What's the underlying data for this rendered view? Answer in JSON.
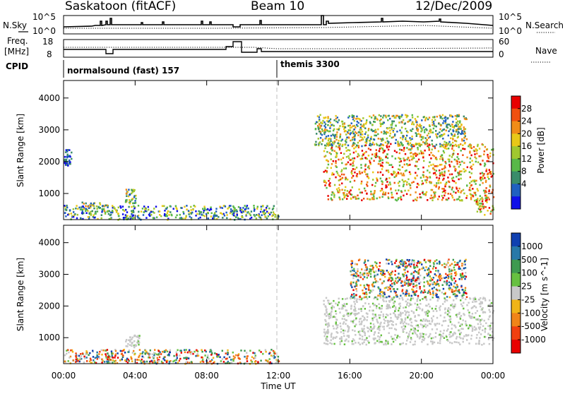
{
  "header": {
    "station": "Saskatoon (fitACF)",
    "beam": "Beam 10",
    "date": "12/Dec/2009"
  },
  "noise_panel": {
    "left_label": "N.Sky",
    "right_label": "N.Search",
    "left_ticks": [
      "10^5",
      "10^0"
    ],
    "right_ticks": [
      "10^5",
      "10^0"
    ]
  },
  "freq_panel": {
    "left_label_line1": "Freq.",
    "left_label_line2": "[MHz]",
    "right_label": "Nave",
    "left_ticks": [
      "18",
      "8"
    ],
    "right_ticks": [
      "60",
      "0"
    ]
  },
  "cpid_panel": {
    "label": "CPID",
    "segments": [
      "normalsound (fast) 157",
      "themis 3300"
    ]
  },
  "x_axis": {
    "label": "Time UT",
    "ticks": [
      "00:00",
      "04:00",
      "08:00",
      "12:00",
      "16:00",
      "20:00",
      "00:00"
    ]
  },
  "chart_data": [
    {
      "type": "heatmap",
      "title": "",
      "xlabel": "Time UT",
      "ylabel": "Slant Range [km]",
      "y_ticks": [
        "1000",
        "2000",
        "3000",
        "4000"
      ],
      "ylim": [
        180,
        4550
      ],
      "xlim_hours": [
        0,
        24
      ],
      "colorbar": {
        "label": "Power [dB]",
        "ticks": [
          "4",
          "8",
          "12",
          "16",
          "20",
          "24",
          "28"
        ],
        "colors": [
          "#1010e8",
          "#2060c0",
          "#3a8c6a",
          "#58b848",
          "#a0c830",
          "#e8c818",
          "#f08c18",
          "#f05010",
          "#e80000"
        ]
      },
      "features": [
        {
          "t0": 0.0,
          "t1": 12.0,
          "r0": 200,
          "r1": 650,
          "level": "low-mid",
          "note": "near-range ground scatter band"
        },
        {
          "t0": 0.0,
          "t1": 0.4,
          "r0": 1900,
          "r1": 2400,
          "level": "low"
        },
        {
          "t0": 1.0,
          "t1": 2.5,
          "r0": 450,
          "r1": 750,
          "level": "mid"
        },
        {
          "t0": 3.4,
          "t1": 4.0,
          "r0": 700,
          "r1": 1150,
          "level": "mid"
        },
        {
          "t0": 14.5,
          "t1": 24.0,
          "r0": 800,
          "r1": 2600,
          "level": "high",
          "note": "strong far-range scatter"
        },
        {
          "t0": 14.0,
          "t1": 22.5,
          "r0": 2500,
          "r1": 3500,
          "level": "mid",
          "note": "patchy far-range echoes"
        },
        {
          "t0": 23.0,
          "t1": 24.0,
          "r0": 300,
          "r1": 900,
          "level": "high"
        }
      ]
    },
    {
      "type": "heatmap",
      "title": "",
      "xlabel": "Time UT",
      "ylabel": "Slant Range [km]",
      "y_ticks": [
        "1000",
        "2000",
        "3000",
        "4000"
      ],
      "ylim": [
        180,
        4550
      ],
      "xlim_hours": [
        0,
        24
      ],
      "colorbar": {
        "label": "Velocity [m s^-1]",
        "ticks": [
          "1000",
          "500",
          "100",
          "25",
          "-25",
          "-100",
          "-500",
          "-1000"
        ],
        "colors": [
          "#1040b0",
          "#2878a8",
          "#3e9a50",
          "#66c040",
          "#c8c8c8",
          "#f0b418",
          "#f08418",
          "#f04010",
          "#e80000"
        ]
      },
      "features": [
        {
          "t0": 0.0,
          "t1": 12.0,
          "r0": 200,
          "r1": 650,
          "level": "low-velocity mixed"
        },
        {
          "t0": 3.4,
          "t1": 4.2,
          "r0": 700,
          "r1": 1100,
          "level": "ground scatter (grey)"
        },
        {
          "t0": 14.5,
          "t1": 24.0,
          "r0": 800,
          "r1": 2300,
          "level": "ground scatter (grey)"
        },
        {
          "t0": 16.0,
          "t1": 22.5,
          "r0": 2300,
          "r1": 3500,
          "level": "mixed +/- velocities"
        }
      ]
    }
  ],
  "annotations": {
    "dashed_line_time": "12:00"
  },
  "colors": {
    "axis": "#000000",
    "dashed_marker": "#bfbfbf"
  }
}
